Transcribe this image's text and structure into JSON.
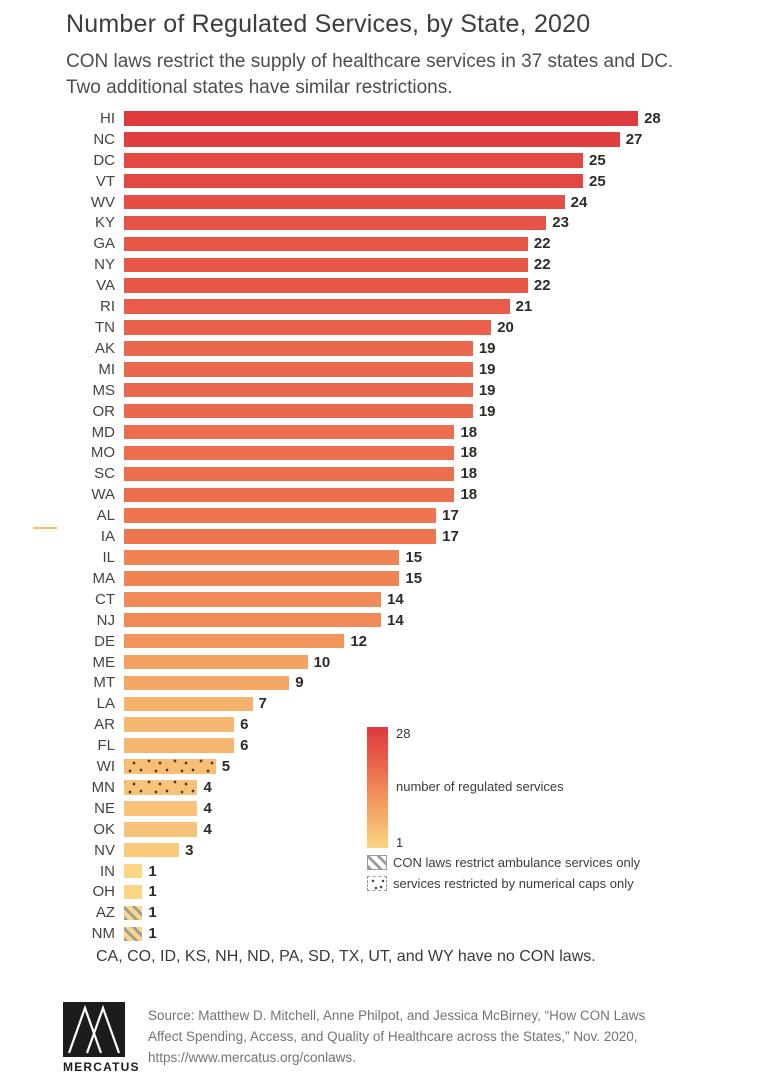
{
  "header": {
    "title": "Number of Regulated Services, by State, 2020",
    "subtitle_line1": "CON laws restrict the supply of healthcare services in 37 states and DC.",
    "subtitle_line2": "Two additional states have similar restrictions."
  },
  "chart_data": {
    "type": "bar",
    "orientation": "horizontal",
    "title": "Number of Regulated Services, by State, 2020",
    "xlabel": "number of regulated services",
    "ylabel": "state",
    "value_range": [
      1,
      28
    ],
    "grid": false,
    "legend_position": "right-bottom",
    "bars": [
      {
        "state": "HI",
        "value": 28,
        "pattern": "solid"
      },
      {
        "state": "NC",
        "value": 27,
        "pattern": "solid"
      },
      {
        "state": "DC",
        "value": 25,
        "pattern": "solid"
      },
      {
        "state": "VT",
        "value": 25,
        "pattern": "solid"
      },
      {
        "state": "WV",
        "value": 24,
        "pattern": "solid"
      },
      {
        "state": "KY",
        "value": 23,
        "pattern": "solid"
      },
      {
        "state": "GA",
        "value": 22,
        "pattern": "solid"
      },
      {
        "state": "NY",
        "value": 22,
        "pattern": "solid"
      },
      {
        "state": "VA",
        "value": 22,
        "pattern": "solid"
      },
      {
        "state": "RI",
        "value": 21,
        "pattern": "solid"
      },
      {
        "state": "TN",
        "value": 20,
        "pattern": "solid"
      },
      {
        "state": "AK",
        "value": 19,
        "pattern": "solid"
      },
      {
        "state": "MI",
        "value": 19,
        "pattern": "solid"
      },
      {
        "state": "MS",
        "value": 19,
        "pattern": "solid"
      },
      {
        "state": "OR",
        "value": 19,
        "pattern": "solid"
      },
      {
        "state": "MD",
        "value": 18,
        "pattern": "solid"
      },
      {
        "state": "MO",
        "value": 18,
        "pattern": "solid"
      },
      {
        "state": "SC",
        "value": 18,
        "pattern": "solid"
      },
      {
        "state": "WA",
        "value": 18,
        "pattern": "solid"
      },
      {
        "state": "AL",
        "value": 17,
        "pattern": "solid"
      },
      {
        "state": "IA",
        "value": 17,
        "pattern": "solid"
      },
      {
        "state": "IL",
        "value": 15,
        "pattern": "solid"
      },
      {
        "state": "MA",
        "value": 15,
        "pattern": "solid"
      },
      {
        "state": "CT",
        "value": 14,
        "pattern": "solid"
      },
      {
        "state": "NJ",
        "value": 14,
        "pattern": "solid"
      },
      {
        "state": "DE",
        "value": 12,
        "pattern": "solid"
      },
      {
        "state": "ME",
        "value": 10,
        "pattern": "solid"
      },
      {
        "state": "MT",
        "value": 9,
        "pattern": "solid"
      },
      {
        "state": "LA",
        "value": 7,
        "pattern": "solid"
      },
      {
        "state": "AR",
        "value": 6,
        "pattern": "solid"
      },
      {
        "state": "FL",
        "value": 6,
        "pattern": "solid"
      },
      {
        "state": "WI",
        "value": 5,
        "pattern": "dots"
      },
      {
        "state": "MN",
        "value": 4,
        "pattern": "dots"
      },
      {
        "state": "NE",
        "value": 4,
        "pattern": "solid"
      },
      {
        "state": "OK",
        "value": 4,
        "pattern": "solid"
      },
      {
        "state": "NV",
        "value": 3,
        "pattern": "solid"
      },
      {
        "state": "IN",
        "value": 1,
        "pattern": "solid"
      },
      {
        "state": "OH",
        "value": 1,
        "pattern": "solid"
      },
      {
        "state": "AZ",
        "value": 1,
        "pattern": "stripes"
      },
      {
        "state": "NM",
        "value": 1,
        "pattern": "stripes"
      }
    ],
    "color_stops": [
      {
        "value": 28,
        "color": "#DE3A3E"
      },
      {
        "value": 20,
        "color": "#E9614B"
      },
      {
        "value": 14,
        "color": "#F08A56"
      },
      {
        "value": 8,
        "color": "#F5AC68"
      },
      {
        "value": 1,
        "color": "#FAD584"
      }
    ],
    "legend": {
      "max_label": "28",
      "min_label": "1",
      "gradient_label": "number of regulated services",
      "stripe_label": "CON laws restrict ambulance services only",
      "dots_label": "services restricted by numerical caps only"
    }
  },
  "note": "CA, CO, ID, KS, NH, ND, PA, SD, TX, UT, and WY have no CON laws.",
  "footer": {
    "logo_text": "MERCATUS",
    "source": "Source: Matthew D. Mitchell, Anne Philpot, and Jessica McBirney, “How CON Laws Affect Spending, Access, and Quality of Healthcare across the States,” Nov. 2020, https://www.mercatus.org/conlaws."
  }
}
